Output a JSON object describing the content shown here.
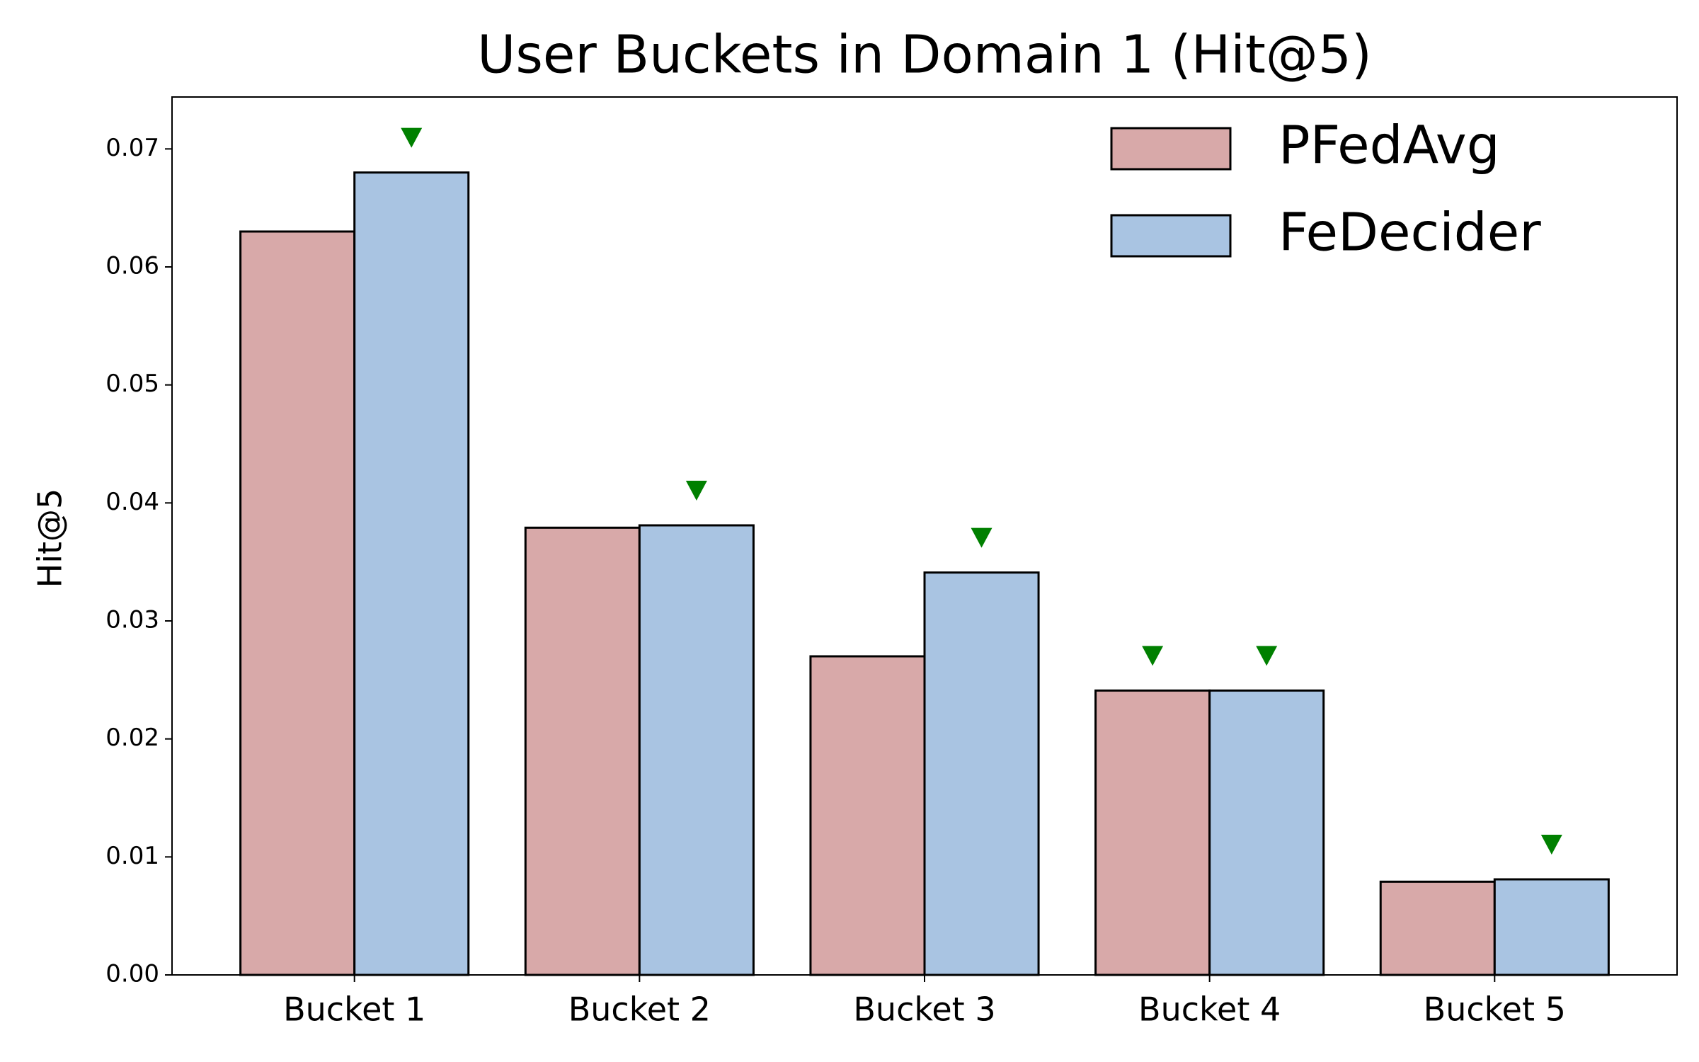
{
  "chart_data": {
    "type": "bar",
    "title": "User Buckets in Domain 1 (Hit@5)",
    "y_label": "Hit@5",
    "categories": [
      "Bucket 1",
      "Bucket 2",
      "Bucket 3",
      "Bucket 4",
      "Bucket 5"
    ],
    "series": [
      {
        "name": "PFedAvg",
        "color": "#d8a9a9",
        "values": [
          0.063,
          0.0379,
          0.027,
          0.0241,
          0.0079
        ],
        "marked": [
          false,
          false,
          false,
          true,
          false
        ]
      },
      {
        "name": "FeDecider",
        "color": "#a9c4e2",
        "values": [
          0.068,
          0.0381,
          0.0341,
          0.0241,
          0.0081
        ],
        "marked": [
          true,
          true,
          true,
          true,
          true
        ]
      }
    ],
    "marker_color": "#008000",
    "ylim": [
      0,
      0.0744
    ],
    "yticks": [
      {
        "value": 0,
        "label": "0.00"
      },
      0.01,
      0.02,
      0.03,
      0.04,
      0.05,
      0.06,
      0.07
    ],
    "legend": "upper right"
  }
}
